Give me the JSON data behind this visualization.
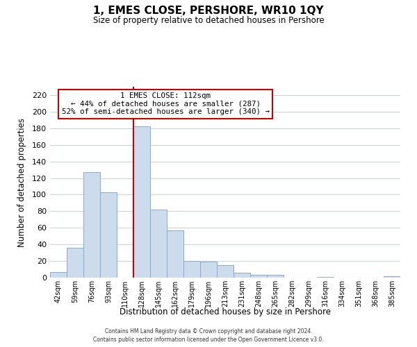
{
  "title": "1, EMES CLOSE, PERSHORE, WR10 1QY",
  "subtitle": "Size of property relative to detached houses in Pershore",
  "xlabel": "Distribution of detached houses by size in Pershore",
  "ylabel": "Number of detached properties",
  "bar_labels": [
    "42sqm",
    "59sqm",
    "76sqm",
    "93sqm",
    "110sqm",
    "128sqm",
    "145sqm",
    "162sqm",
    "179sqm",
    "196sqm",
    "213sqm",
    "231sqm",
    "248sqm",
    "265sqm",
    "282sqm",
    "299sqm",
    "316sqm",
    "334sqm",
    "351sqm",
    "368sqm",
    "385sqm"
  ],
  "bar_values": [
    7,
    36,
    127,
    103,
    0,
    182,
    82,
    57,
    20,
    19,
    15,
    6,
    3,
    3,
    0,
    0,
    1,
    0,
    0,
    0,
    2
  ],
  "bar_color": "#ccdcec",
  "bar_edge_color": "#88aacc",
  "highlight_line_color": "#cc0000",
  "highlight_bar_index": 5,
  "ylim": [
    0,
    230
  ],
  "yticks": [
    0,
    20,
    40,
    60,
    80,
    100,
    120,
    140,
    160,
    180,
    200,
    220
  ],
  "annotation_title": "1 EMES CLOSE: 112sqm",
  "annotation_line1": "← 44% of detached houses are smaller (287)",
  "annotation_line2": "52% of semi-detached houses are larger (340) →",
  "footer_line1": "Contains HM Land Registry data © Crown copyright and database right 2024.",
  "footer_line2": "Contains public sector information licensed under the Open Government Licence v3.0.",
  "background_color": "#ffffff",
  "grid_color": "#c8d4dc"
}
